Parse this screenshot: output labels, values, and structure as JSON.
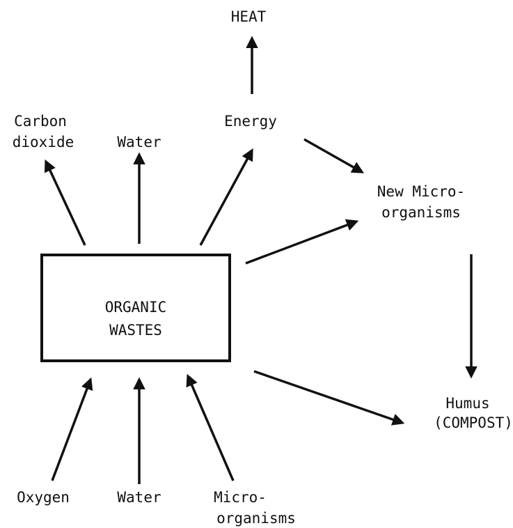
{
  "nodes": [
    {
      "lines": [
        "HEAT"
      ]
    },
    {
      "lines": [
        "Energy"
      ]
    },
    {
      "lines": [
        "Carbon",
        "dioxide"
      ]
    },
    {
      "lines": [
        "Water"
      ]
    },
    {
      "lines": [
        "New Micro-",
        "organisms"
      ]
    },
    {
      "lines": [
        "ORGANIC",
        "WASTES"
      ]
    },
    {
      "lines": [
        "Humus",
        "(COMPOST)"
      ]
    },
    {
      "lines": [
        "Oxygen"
      ]
    },
    {
      "lines": [
        "Water"
      ]
    },
    {
      "lines": [
        "Micro-",
        "organisms"
      ]
    }
  ]
}
